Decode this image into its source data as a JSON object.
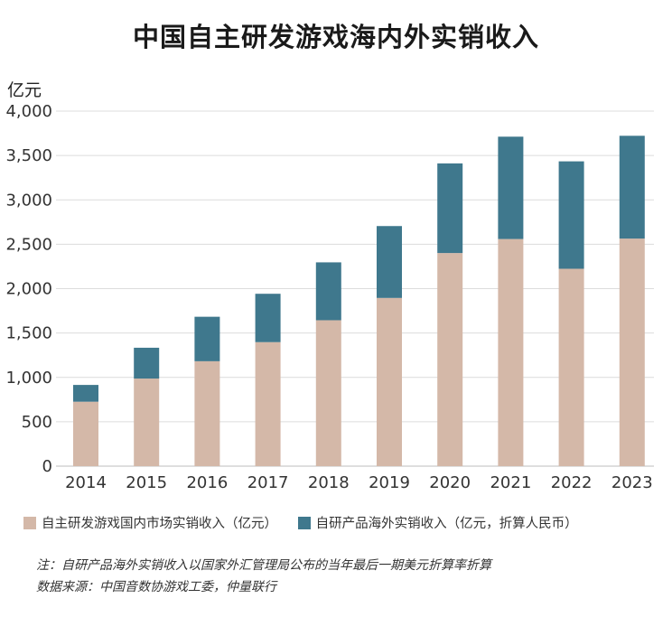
{
  "chart_data": {
    "type": "bar",
    "stacked": true,
    "title": "中国自主研发游戏海内外实销收入",
    "ylabel": "亿元",
    "xlabel": "",
    "ylim": [
      0,
      4000
    ],
    "yticks": [
      0,
      500,
      1000,
      1500,
      2000,
      2500,
      3000,
      3500,
      4000
    ],
    "ytick_labels": [
      "0",
      "500",
      "1,000",
      "1,500",
      "2,000",
      "2,500",
      "3,000",
      "3,500",
      "4,000"
    ],
    "grid": true,
    "legend_position": "bottom",
    "categories": [
      "2014",
      "2015",
      "2016",
      "2017",
      "2018",
      "2019",
      "2020",
      "2021",
      "2022",
      "2023"
    ],
    "series": [
      {
        "name": "自主研发游戏国内市场实销收入（亿元）",
        "color": "#d4b8a8",
        "values": [
          726,
          987,
          1182,
          1397,
          1644,
          1895,
          2401,
          2559,
          2224,
          2564
        ]
      },
      {
        "name": "自研产品海外实销收入（亿元，折算人民币）",
        "color": "#3f788d",
        "values": [
          189,
          347,
          501,
          545,
          652,
          810,
          1010,
          1153,
          1210,
          1158
        ]
      }
    ]
  },
  "notes": {
    "line1": "注：自研产品海外实销收入以国家外汇管理局公布的当年最后一期美元折算率折算",
    "line2": "数据来源：中国音数协游戏工委，仲量联行"
  }
}
